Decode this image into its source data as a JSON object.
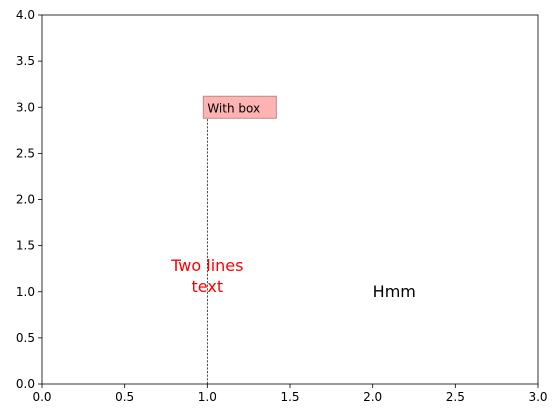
{
  "chart_data": {
    "type": "scatter",
    "title": "",
    "xlabel": "",
    "ylabel": "",
    "xlim": [
      0,
      3
    ],
    "ylim": [
      0,
      4
    ],
    "x_ticks": [
      {
        "value": 0.0,
        "label": "0.0"
      },
      {
        "value": 0.5,
        "label": "0.5"
      },
      {
        "value": 1.0,
        "label": "1.0"
      },
      {
        "value": 1.5,
        "label": "1.5"
      },
      {
        "value": 2.0,
        "label": "2.0"
      },
      {
        "value": 2.5,
        "label": "2.5"
      },
      {
        "value": 3.0,
        "label": "3.0"
      }
    ],
    "y_ticks": [
      {
        "value": 0.0,
        "label": "0.0"
      },
      {
        "value": 0.5,
        "label": "0.5"
      },
      {
        "value": 1.0,
        "label": "1.0"
      },
      {
        "value": 1.5,
        "label": "1.5"
      },
      {
        "value": 2.0,
        "label": "2.0"
      },
      {
        "value": 2.5,
        "label": "2.5"
      },
      {
        "value": 3.0,
        "label": "3.0"
      },
      {
        "value": 3.5,
        "label": "3.5"
      },
      {
        "value": 4.0,
        "label": "4.0"
      }
    ],
    "grid": false,
    "vertical_line": {
      "x": 1.0,
      "ymin": 0,
      "ymax": 3.0,
      "style": "dashed",
      "color": "#000000"
    },
    "annotations": [
      {
        "name": "annotation-two-lines",
        "lines": [
          "Two lines",
          "text"
        ],
        "x": 1.0,
        "y": 1.0,
        "ha": "center",
        "va": "bottom",
        "color": "#ff0000"
      },
      {
        "name": "annotation-with-box",
        "lines": [
          "With box"
        ],
        "x": 1.0,
        "y": 3.0,
        "ha": "left",
        "va": "center",
        "color": "#000000",
        "box_color": "#ffb3b3",
        "box_edge": "#b98a8a"
      },
      {
        "name": "annotation-hmm",
        "lines": [
          "Hmm"
        ],
        "x": 2.0,
        "y": 1.0,
        "ha": "left",
        "va": "center",
        "color": "#000000"
      }
    ]
  }
}
